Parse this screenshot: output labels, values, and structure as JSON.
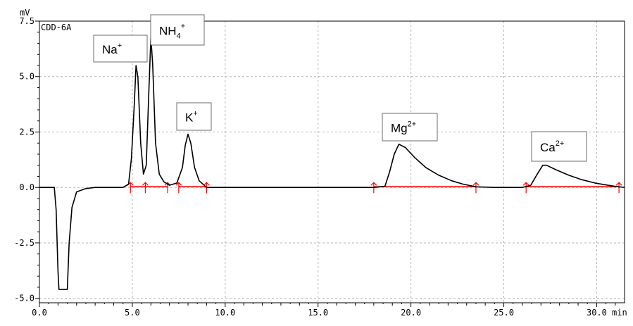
{
  "chart_data": {
    "type": "line",
    "title": "",
    "detector_label": "CDD-6A",
    "xlabel": "",
    "ylabel": "",
    "x_unit": "min",
    "y_unit": "mV",
    "xlim": [
      0.0,
      31.5
    ],
    "ylim": [
      -5.2,
      7.5
    ],
    "grid": true,
    "x_ticks": [
      0.0,
      5.0,
      10.0,
      15.0,
      20.0,
      25.0,
      30.0
    ],
    "x_tick_labels": [
      "0.0",
      "5.0",
      "10.0",
      "15.0",
      "20.0",
      "25.0",
      "30.0"
    ],
    "y_ticks": [
      7.5,
      5.0,
      2.5,
      0.0,
      -2.5,
      -5.0
    ],
    "y_tick_labels": [
      "7.5",
      "5.0",
      "2.5",
      "0.0",
      "-2.5",
      "-5.0"
    ],
    "series": [
      {
        "color": "#000000",
        "x": [
          0.0,
          0.8,
          0.9,
          1.0,
          1.05,
          1.1,
          1.5,
          1.6,
          1.75,
          2.0,
          2.5,
          3.0,
          4.5,
          4.8,
          4.95,
          5.1,
          5.2,
          5.3,
          5.45,
          5.6,
          5.75,
          5.9,
          6.0,
          6.1,
          6.25,
          6.45,
          6.7,
          7.0,
          7.4,
          7.7,
          7.85,
          8.0,
          8.15,
          8.35,
          8.6,
          9.0,
          17.0,
          18.0,
          18.6,
          18.85,
          19.1,
          19.35,
          19.7,
          20.2,
          20.8,
          21.5,
          22.2,
          22.8,
          23.5,
          24.5,
          26.0,
          26.45,
          26.8,
          27.1,
          27.3,
          27.8,
          28.5,
          29.2,
          29.9,
          30.6,
          31.1,
          31.5
        ],
        "y": [
          0.0,
          0.0,
          -1.0,
          -3.8,
          -4.6,
          -4.6,
          -4.6,
          -2.5,
          -0.9,
          -0.2,
          -0.05,
          0.0,
          0.0,
          0.15,
          1.3,
          3.6,
          5.5,
          5.0,
          2.0,
          0.6,
          1.0,
          4.5,
          6.8,
          5.5,
          2.0,
          0.6,
          0.25,
          0.1,
          0.2,
          0.9,
          1.9,
          2.4,
          2.0,
          0.9,
          0.3,
          0.0,
          0.0,
          0.0,
          0.05,
          0.7,
          1.5,
          1.95,
          1.8,
          1.35,
          0.9,
          0.55,
          0.3,
          0.15,
          0.03,
          0.0,
          0.0,
          0.1,
          0.6,
          1.0,
          1.0,
          0.8,
          0.55,
          0.35,
          0.2,
          0.1,
          0.04,
          0.0
        ]
      }
    ],
    "baseline_marks": {
      "color": "#ff0000",
      "segments": [
        [
          4.9,
          5.7
        ],
        [
          5.7,
          6.9
        ],
        [
          7.5,
          9.0
        ],
        [
          18.0,
          23.5
        ],
        [
          26.2,
          31.2
        ]
      ],
      "markers": [
        4.9,
        5.7,
        6.9,
        7.5,
        9.0,
        18.0,
        23.5,
        26.2,
        31.2
      ]
    },
    "annotations": [
      {
        "base": "Na",
        "sup": "+",
        "sub": "",
        "peak_x": 5.2
      },
      {
        "base": "NH",
        "sub": "4",
        "sup": "+",
        "peak_x": 6.0
      },
      {
        "base": "K",
        "sup": "+",
        "sub": "",
        "peak_x": 8.0
      },
      {
        "base": "Mg",
        "sup": "2+",
        "sub": "",
        "peak_x": 19.4
      },
      {
        "base": "Ca",
        "sup": "2+",
        "sub": "",
        "peak_x": 27.1
      }
    ]
  }
}
